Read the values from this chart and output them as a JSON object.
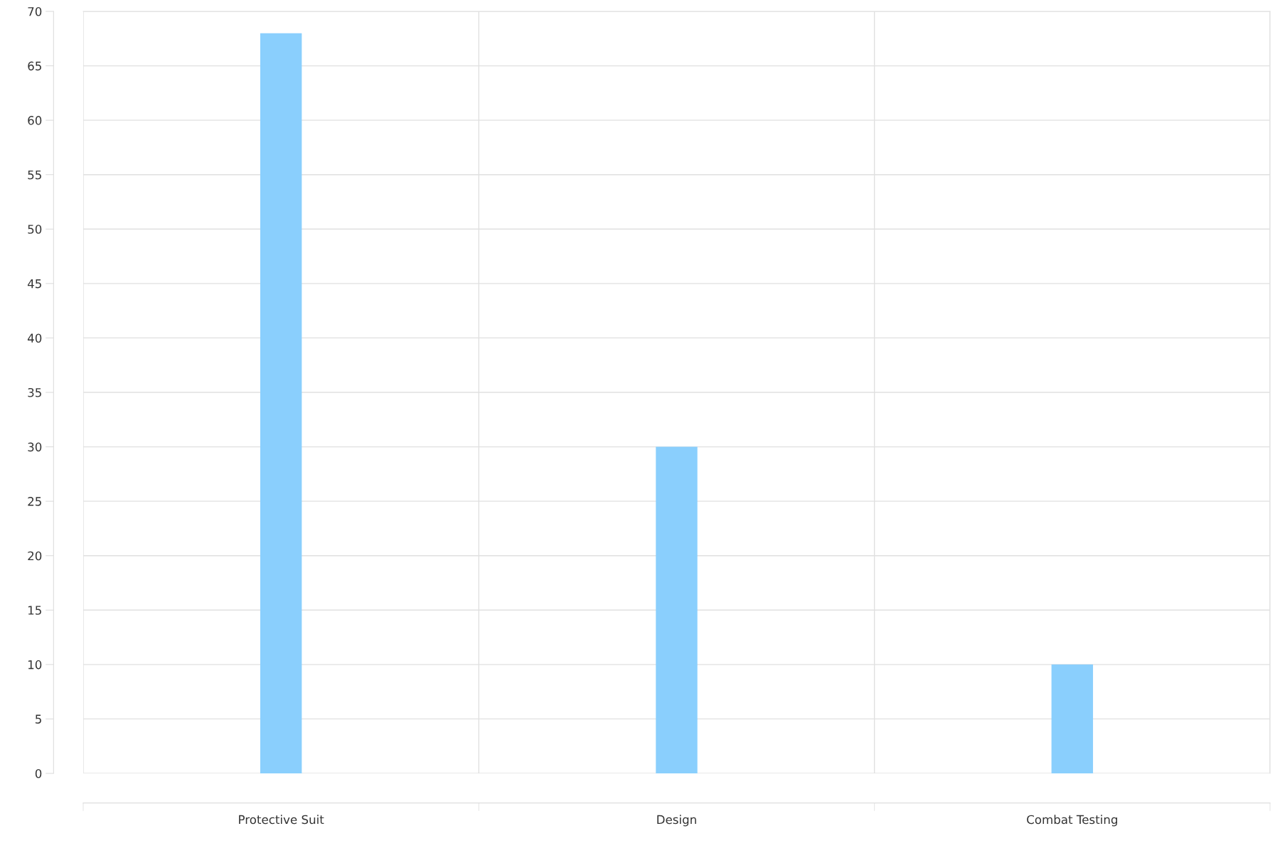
{
  "chart_data": {
    "type": "bar",
    "categories": [
      "Protective Suit",
      "Design",
      "Combat Testing"
    ],
    "values": [
      68,
      30,
      10
    ],
    "color": "#8acffd",
    "ylim": [
      0,
      70
    ],
    "yticks": [
      0,
      5,
      10,
      15,
      20,
      25,
      30,
      35,
      40,
      45,
      50,
      55,
      60,
      65,
      70
    ],
    "grid": true
  }
}
